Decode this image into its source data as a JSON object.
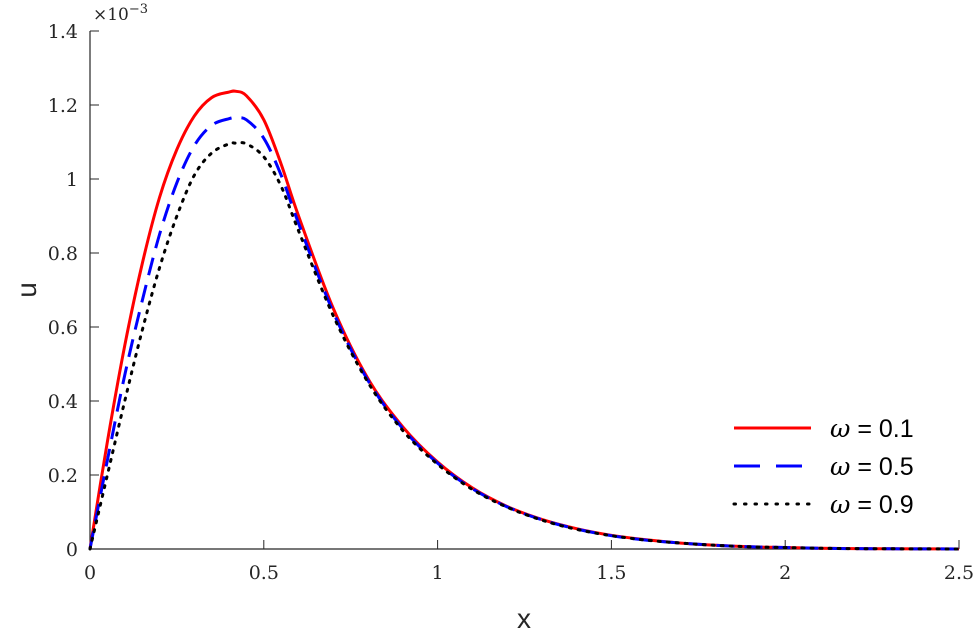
{
  "chart_data": {
    "type": "line",
    "title": "",
    "xlabel": "x",
    "ylabel": "u",
    "y_multiplier_label": "×10",
    "y_multiplier_exponent": "−3",
    "xlim": [
      0,
      2.5
    ],
    "ylim": [
      0,
      1.4
    ],
    "xticks": [
      0,
      0.5,
      1,
      1.5,
      2,
      2.5
    ],
    "xtick_labels": [
      "0",
      "0.5",
      "1",
      "1.5",
      "2",
      "2.5"
    ],
    "yticks": [
      0,
      0.2,
      0.4,
      0.6,
      0.8,
      1,
      1.2,
      1.4
    ],
    "ytick_labels": [
      "0",
      "0.2",
      "0.4",
      "0.6",
      "0.8",
      "1",
      "1.2",
      "1.4"
    ],
    "grid": false,
    "legend_position": "lower right",
    "x": [
      0,
      0.05,
      0.1,
      0.15,
      0.2,
      0.25,
      0.3,
      0.35,
      0.4,
      0.42,
      0.45,
      0.5,
      0.55,
      0.6,
      0.7,
      0.8,
      0.9,
      1.0,
      1.1,
      1.2,
      1.3,
      1.4,
      1.5,
      1.6,
      1.7,
      1.8,
      1.9,
      2.0,
      2.1,
      2.2,
      2.3,
      2.4,
      2.5
    ],
    "series": [
      {
        "name": "ω = 0.1",
        "color": "#ff0000",
        "style": "solid",
        "values": [
          0,
          0.29,
          0.55,
          0.77,
          0.95,
          1.08,
          1.17,
          1.22,
          1.235,
          1.237,
          1.225,
          1.16,
          1.04,
          0.9,
          0.65,
          0.46,
          0.33,
          0.235,
          0.165,
          0.115,
          0.08,
          0.055,
          0.037,
          0.025,
          0.016,
          0.01,
          0.006,
          0.004,
          0.002,
          0.001,
          0.0006,
          0.0003,
          0.0001
        ]
      },
      {
        "name": "ω = 0.5",
        "color": "#0000ff",
        "style": "dashed",
        "values": [
          0,
          0.24,
          0.47,
          0.67,
          0.85,
          0.99,
          1.09,
          1.145,
          1.163,
          1.165,
          1.16,
          1.11,
          1.01,
          0.88,
          0.64,
          0.455,
          0.325,
          0.232,
          0.163,
          0.114,
          0.079,
          0.054,
          0.036,
          0.024,
          0.016,
          0.01,
          0.006,
          0.004,
          0.002,
          0.001,
          0.0006,
          0.0003,
          0.0001
        ]
      },
      {
        "name": "ω = 0.9",
        "color": "#000000",
        "style": "dotted",
        "values": [
          0,
          0.2,
          0.4,
          0.59,
          0.76,
          0.9,
          1.01,
          1.07,
          1.095,
          1.097,
          1.095,
          1.06,
          0.98,
          0.86,
          0.63,
          0.45,
          0.32,
          0.229,
          0.161,
          0.113,
          0.078,
          0.053,
          0.036,
          0.024,
          0.016,
          0.01,
          0.006,
          0.004,
          0.002,
          0.001,
          0.0006,
          0.0003,
          0.0001
        ]
      }
    ]
  },
  "legend": {
    "items": [
      {
        "symbol": "ω",
        "text": " = 0.1"
      },
      {
        "symbol": "ω",
        "text": " = 0.5"
      },
      {
        "symbol": "ω",
        "text": " = 0.9"
      }
    ]
  }
}
